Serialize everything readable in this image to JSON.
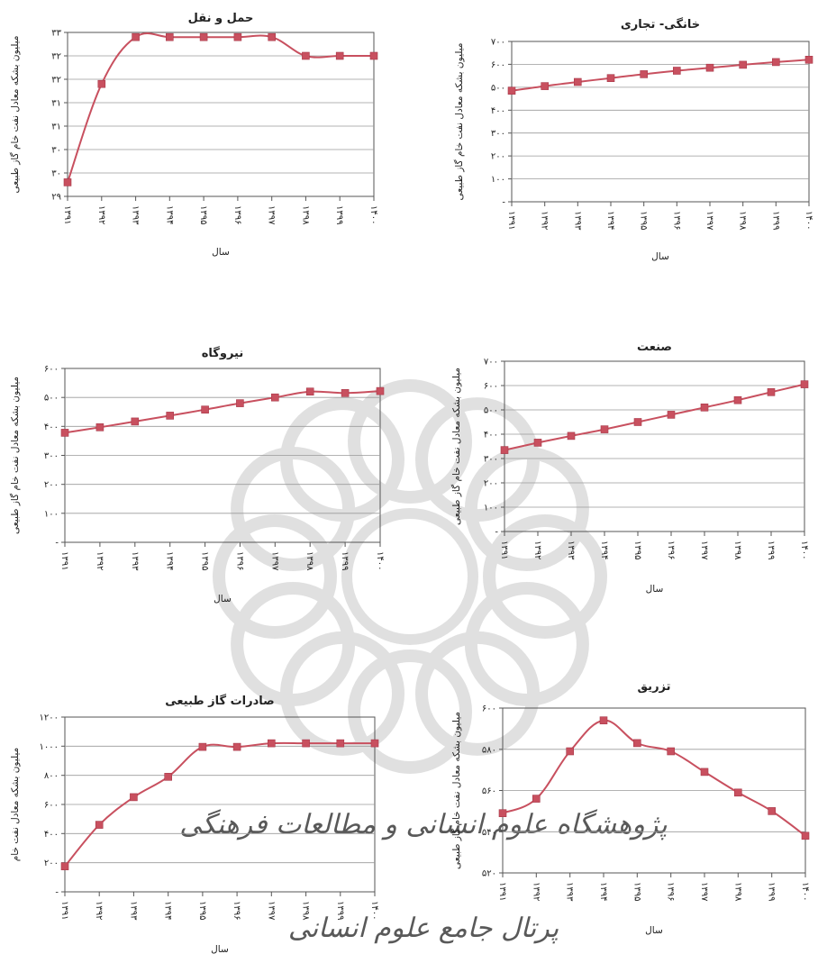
{
  "watermark": {
    "line1": "پژوهشگاه علوم انسانی و مطالعات فرهنگی",
    "line2": "پرتال جامع علوم انسانی",
    "color": "#c8c8c8"
  },
  "colors": {
    "series": "#c8505f",
    "marker": "#c8505f",
    "grid": "#9a9a9a",
    "axis": "#555555"
  },
  "chart_data": [
    {
      "type": "line",
      "title": "حمل و نقل",
      "xlabel": "سال",
      "ylabel": "میلیون بشکه معادل نفت خام گاز طبیعی",
      "categories": [
        "۱۳۹۱",
        "۱۳۹۲",
        "۱۳۹۳",
        "۱۳۹۴",
        "۱۳۹۵",
        "۱۳۹۶",
        "۱۳۹۷",
        "۱۳۹۸",
        "۱۳۹۹",
        "۱۴۰۰"
      ],
      "yticks": [
        "۲۹",
        "۳۰",
        "۳۰",
        "۳۱",
        "۳۱",
        "۳۲",
        "۳۲",
        "۳۳"
      ],
      "ylim": [
        29,
        32.5
      ],
      "values": [
        29.3,
        31.4,
        32.4,
        32.4,
        32.4,
        32.4,
        32.4,
        32.0,
        32.0,
        32.0
      ]
    },
    {
      "type": "line",
      "title": "خانگی- تجاری",
      "xlabel": "سال",
      "ylabel": "میلیون بشکه معادل نفت خام گاز طبیعی",
      "categories": [
        "۱۳۹۱",
        "۱۳۹۲",
        "۱۳۹۳",
        "۱۳۹۴",
        "۱۳۹۵",
        "۱۳۹۶",
        "۱۳۹۷",
        "۱۳۹۸",
        "۱۳۹۹",
        "۱۴۰۰"
      ],
      "yticks": [
        "-",
        "۱۰۰",
        "۲۰۰",
        "۳۰۰",
        "۴۰۰",
        "۵۰۰",
        "۶۰۰",
        "۷۰۰"
      ],
      "ylim": [
        0,
        700
      ],
      "values": [
        485,
        505,
        523,
        540,
        557,
        572,
        585,
        598,
        610,
        620
      ]
    },
    {
      "type": "line",
      "title": "نیروگاه",
      "xlabel": "سال",
      "ylabel": "میلیون بشکه معادل نفت خام گاز طبیعی",
      "categories": [
        "۱۳۹۱",
        "۱۳۹۲",
        "۱۳۹۳",
        "۱۳۹۴",
        "۱۳۹۵",
        "۱۳۹۶",
        "۱۳۹۷",
        "۱۳۹۸",
        "۱۳۹۹",
        "۱۴۰۰"
      ],
      "yticks": [
        "-",
        "۱۰۰",
        "۲۰۰",
        "۳۰۰",
        "۴۰۰",
        "۵۰۰",
        "۶۰۰"
      ],
      "ylim": [
        0,
        600
      ],
      "values": [
        378,
        397,
        417,
        437,
        458,
        480,
        500,
        520,
        515,
        522
      ]
    },
    {
      "type": "line",
      "title": "صنعت",
      "xlabel": "سال",
      "ylabel": "میلیون بشکه معادل نفت خام گاز طبیعی",
      "categories": [
        "۱۳۹۱",
        "۱۳۹۲",
        "۱۳۹۳",
        "۱۳۹۴",
        "۱۳۹۵",
        "۱۳۹۶",
        "۱۳۹۷",
        "۱۳۹۸",
        "۱۳۹۹",
        "۱۴۰۰"
      ],
      "yticks": [
        "-",
        "۱۰۰",
        "۲۰۰",
        "۳۰۰",
        "۴۰۰",
        "۵۰۰",
        "۶۰۰",
        "۷۰۰"
      ],
      "ylim": [
        0,
        700
      ],
      "values": [
        335,
        365,
        393,
        420,
        450,
        480,
        510,
        540,
        573,
        605
      ]
    },
    {
      "type": "line",
      "title": "صادرات گاز طبیعی",
      "xlabel": "سال",
      "ylabel": "میلیون بشکه معادل نفت خام",
      "categories": [
        "۱۳۹۱",
        "۱۳۹۲",
        "۱۳۹۳",
        "۱۳۹۴",
        "۱۳۹۵",
        "۱۳۹۶",
        "۱۳۹۷",
        "۱۳۹۸",
        "۱۳۹۹",
        "۱۴۰۰"
      ],
      "yticks": [
        "-",
        "۲۰۰",
        "۴۰۰",
        "۶۰۰",
        "۸۰۰",
        "۱۰۰۰",
        "۱۲۰۰"
      ],
      "ylim": [
        0,
        1200
      ],
      "values": [
        175,
        460,
        650,
        790,
        995,
        995,
        1020,
        1020,
        1020,
        1020
      ]
    },
    {
      "type": "line",
      "title": "تزریق",
      "xlabel": "سال",
      "ylabel": "میلیون بشکه معادل نفت خام گاز طبیعی",
      "categories": [
        "۱۳۹۱",
        "۱۳۹۲",
        "۱۳۹۳",
        "۱۳۹۴",
        "۱۳۹۵",
        "۱۳۹۶",
        "۱۳۹۷",
        "۱۳۹۸",
        "۱۳۹۹",
        "۱۴۰۰"
      ],
      "yticks": [
        "۵۲۰",
        "۵۴۰",
        "۵۶۰",
        "۵۸۰",
        "۶۰۰"
      ],
      "ylim": [
        520,
        600
      ],
      "values": [
        549,
        556,
        579,
        594,
        583,
        579,
        569,
        559,
        550,
        538
      ]
    }
  ]
}
